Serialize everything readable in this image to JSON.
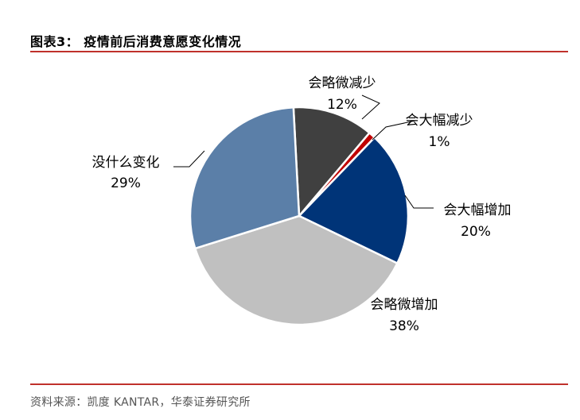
{
  "header": {
    "title": "图表3：  疫情前后消费意愿变化情况"
  },
  "footer": {
    "source": "资料来源：凯度 KANTAR，华泰证券研究所"
  },
  "chart_data": {
    "type": "pie",
    "title": "图表3：  疫情前后消费意愿变化情况",
    "slices": [
      {
        "name": "会略微减少",
        "value": 12,
        "label": "12%",
        "color": "#404040"
      },
      {
        "name": "会大幅减少",
        "value": 1,
        "label": "1%",
        "color": "#c00000"
      },
      {
        "name": "会大幅增加",
        "value": 20,
        "label": "20%",
        "color": "#003478"
      },
      {
        "name": "会略微增加",
        "value": 38,
        "label": "38%",
        "color": "#c0c0c0"
      },
      {
        "name": "没什么变化",
        "value": 29,
        "label": "29%",
        "color": "#5b7fa8"
      }
    ],
    "start_angle_deg": -3,
    "direction": "clockwise",
    "legend": "none",
    "slice_border_color": "#ffffff"
  }
}
